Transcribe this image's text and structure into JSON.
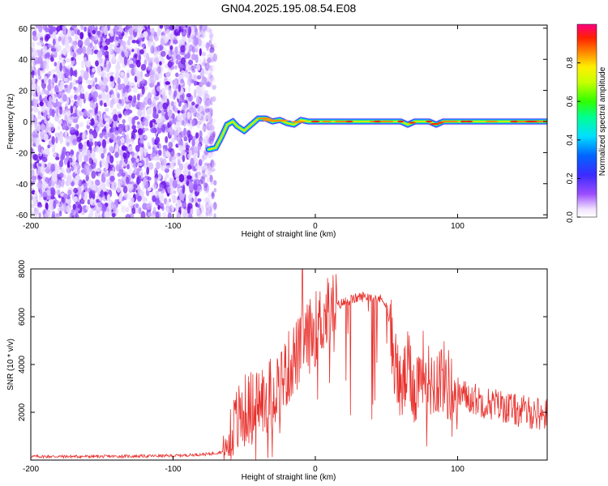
{
  "title": "GN04.2025.195.08.54.E08",
  "chart_data": [
    {
      "type": "heatmap",
      "title": "GN04.2025.195.08.54.E08",
      "xlabel": "Height of straight line (km)",
      "ylabel": "Frequency (Hz)",
      "xlim": [
        -200,
        163
      ],
      "ylim": [
        -62,
        62
      ],
      "x_ticks": [
        "-200",
        "-100",
        "0",
        "100"
      ],
      "y_ticks": [
        "60",
        "40",
        "20",
        "0",
        "-20",
        "-40",
        "-60"
      ],
      "colorbar": {
        "label": "Normalized spectral amplitude",
        "range": [
          0,
          1
        ],
        "ticks": [
          "0.0",
          "0.2",
          "0.4",
          "0.6",
          "0.8"
        ]
      },
      "noise_region_x": [
        -200,
        -75
      ],
      "ridge": {
        "x": [
          -75,
          -70,
          -66,
          -62,
          -58,
          -55,
          -50,
          -45,
          -40,
          -35,
          -30,
          -25,
          -20,
          -15,
          -10,
          -5,
          0,
          20,
          40,
          60,
          65,
          70,
          75,
          80,
          85,
          90,
          100,
          120,
          140,
          163
        ],
        "y": [
          -18,
          -17,
          -10,
          -2,
          0,
          -3,
          -6,
          -2,
          2,
          2,
          0,
          1,
          -1,
          -2,
          1,
          0,
          0,
          0,
          0,
          0,
          -2,
          0,
          0,
          0,
          -2,
          0,
          0,
          0,
          0,
          0
        ]
      }
    },
    {
      "type": "line",
      "xlabel": "Height of straight line (km)",
      "ylabel": "SNR (10 * v/v)",
      "xlim": [
        -200,
        163
      ],
      "ylim": [
        0,
        8000
      ],
      "x_ticks": [
        "-200",
        "-100",
        "0",
        "100"
      ],
      "y_ticks": [
        "8000",
        "6000",
        "4000",
        "2000"
      ],
      "series": [
        {
          "color": "#e8312d",
          "envelope_x": [
            -200,
            -150,
            -100,
            -75,
            -65,
            -60,
            -55,
            -50,
            -45,
            -40,
            -35,
            -30,
            -25,
            -20,
            -15,
            -10,
            -5,
            0,
            5,
            10,
            15,
            20,
            25,
            30,
            35,
            40,
            45,
            50,
            55,
            60,
            65,
            70,
            75,
            80,
            85,
            90,
            95,
            100,
            110,
            120,
            130,
            140,
            150,
            163
          ],
          "envelope_y": [
            150,
            150,
            180,
            250,
            350,
            600,
            1600,
            2000,
            2200,
            2400,
            2600,
            2900,
            3300,
            3700,
            4300,
            4500,
            5100,
            5500,
            5900,
            6200,
            6450,
            6600,
            6700,
            6800,
            6850,
            6850,
            6750,
            6600,
            4500,
            2800,
            3800,
            2900,
            4000,
            3300,
            3400,
            3500,
            3000,
            2800,
            2600,
            2400,
            2300,
            2100,
            2000,
            1900
          ],
          "spike": {
            "x": -9,
            "y": 8000
          },
          "noise_amplitude": 700
        }
      ]
    }
  ]
}
